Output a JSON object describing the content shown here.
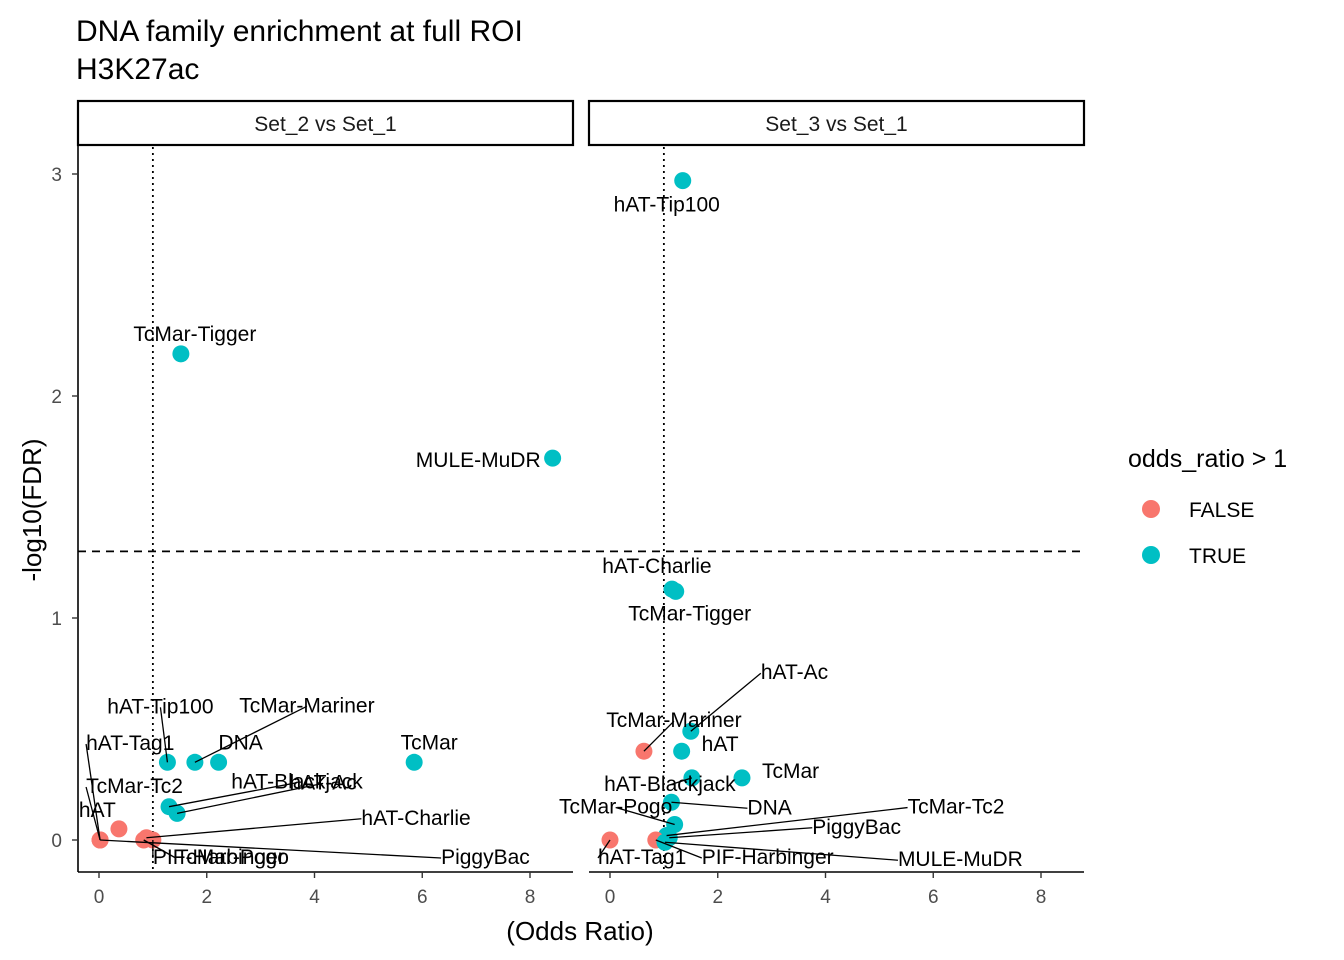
{
  "chart_data": {
    "type": "scatter",
    "title": [
      "DNA family enrichment at full ROI",
      "H3K27ac"
    ],
    "xlabel": "(Odds Ratio)",
    "ylabel": "-log10(FDR)",
    "xlim": [
      -0.4,
      8.8
    ],
    "ylim": [
      -0.15,
      3.1
    ],
    "x_ticks": [
      0,
      2,
      4,
      6,
      8
    ],
    "y_ticks": [
      0,
      1,
      2,
      3
    ],
    "x_tick_labels": [
      "0",
      "2",
      "4",
      "6",
      "8"
    ],
    "y_tick_labels": [
      "0",
      "1",
      "2",
      "3"
    ],
    "reference_lines": {
      "odds_ratio": 1,
      "neg_log10_fdr": 1.3
    },
    "colors": {
      "FALSE": "#F8766D",
      "TRUE": "#00BFC4"
    },
    "legend": {
      "title": "odds_ratio > 1",
      "position": "right",
      "entries": [
        {
          "label": "FALSE",
          "key": "FALSE"
        },
        {
          "label": "TRUE",
          "key": "TRUE"
        }
      ]
    },
    "facets": [
      {
        "name": "Set_2 vs Set_1",
        "points": [
          {
            "label": "TcMar-Tigger",
            "x": 1.52,
            "y": 2.19,
            "group": "TRUE"
          },
          {
            "label": "MULE-MuDR",
            "x": 8.42,
            "y": 1.72,
            "group": "TRUE"
          },
          {
            "label": "hAT-Tip100",
            "x": 1.27,
            "y": 0.35,
            "group": "TRUE"
          },
          {
            "label": "TcMar-Mariner",
            "x": 1.78,
            "y": 0.35,
            "group": "TRUE"
          },
          {
            "label": "DNA",
            "x": 2.22,
            "y": 0.35,
            "group": "TRUE"
          },
          {
            "label": "TcMar",
            "x": 5.85,
            "y": 0.35,
            "group": "TRUE"
          },
          {
            "label": "hAT-Blackjack",
            "x": 1.3,
            "y": 0.15,
            "group": "TRUE"
          },
          {
            "label": "hAT-Ac",
            "x": 1.45,
            "y": 0.12,
            "group": "TRUE"
          },
          {
            "label": "hAT",
            "x": 0.37,
            "y": 0.05,
            "group": "FALSE"
          },
          {
            "label": "hAT-Charlie",
            "x": 0.88,
            "y": 0.01,
            "group": "FALSE"
          },
          {
            "label": "hAT-Tag1",
            "x": 0.02,
            "y": 0.0,
            "group": "FALSE"
          },
          {
            "label": "TcMar-Tc2",
            "x": 0.02,
            "y": 0.0,
            "group": "FALSE"
          },
          {
            "label": "TcMar-Pogo",
            "x": 0.83,
            "y": 0.0,
            "group": "FALSE"
          },
          {
            "label": "PIF-Harbinger",
            "x": 1.0,
            "y": 0.0,
            "group": "FALSE"
          },
          {
            "label": "PiggyBac",
            "x": 0.02,
            "y": 0.0,
            "group": "FALSE"
          }
        ]
      },
      {
        "name": "Set_3 vs Set_1",
        "points": [
          {
            "label": "hAT-Tip100",
            "x": 1.35,
            "y": 2.97,
            "group": "TRUE"
          },
          {
            "label": "hAT-Charlie",
            "x": 1.15,
            "y": 1.13,
            "group": "TRUE"
          },
          {
            "label": "TcMar-Tigger",
            "x": 1.22,
            "y": 1.12,
            "group": "TRUE"
          },
          {
            "label": "hAT-Ac",
            "x": 1.5,
            "y": 0.49,
            "group": "TRUE"
          },
          {
            "label": "TcMar-Mariner",
            "x": 0.63,
            "y": 0.4,
            "group": "FALSE"
          },
          {
            "label": "hAT",
            "x": 1.33,
            "y": 0.4,
            "group": "TRUE"
          },
          {
            "label": "hAT-Blackjack",
            "x": 1.52,
            "y": 0.28,
            "group": "TRUE"
          },
          {
            "label": "TcMar",
            "x": 2.45,
            "y": 0.28,
            "group": "TRUE"
          },
          {
            "label": "DNA",
            "x": 1.14,
            "y": 0.17,
            "group": "TRUE"
          },
          {
            "label": "TcMar-Pogo",
            "x": 1.2,
            "y": 0.07,
            "group": "TRUE"
          },
          {
            "label": "TcMar-Tc2",
            "x": 1.05,
            "y": 0.02,
            "group": "TRUE"
          },
          {
            "label": "PiggyBac",
            "x": 1.1,
            "y": 0.01,
            "group": "TRUE"
          },
          {
            "label": "hAT-Tag1",
            "x": 0.0,
            "y": 0.0,
            "group": "FALSE"
          },
          {
            "label": "PIF-Harbinger",
            "x": 0.85,
            "y": 0.0,
            "group": "FALSE"
          },
          {
            "label": "MULE-MuDR",
            "x": 1.02,
            "y": -0.01,
            "group": "TRUE"
          }
        ]
      }
    ]
  }
}
